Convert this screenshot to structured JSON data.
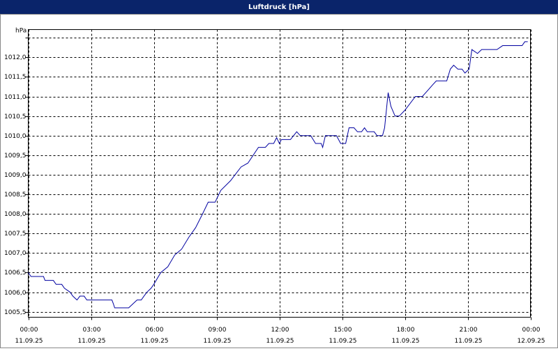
{
  "chart_data": {
    "type": "line",
    "title": "Luftdruck [hPa]",
    "y_label": "hPa",
    "xlim": [
      0,
      24
    ],
    "xticks": [
      {
        "value": 0,
        "label": [
          "00:00",
          "11.09.25"
        ]
      },
      {
        "value": 3,
        "label": [
          "03:00",
          "11.09.25"
        ]
      },
      {
        "value": 6,
        "label": [
          "06:00",
          "11.09.25"
        ]
      },
      {
        "value": 9,
        "label": [
          "09:00",
          "11.09.25"
        ]
      },
      {
        "value": 12,
        "label": [
          "12:00",
          "11.09.25"
        ]
      },
      {
        "value": 15,
        "label": [
          "15:00",
          "11.09.25"
        ]
      },
      {
        "value": 18,
        "label": [
          "18:00",
          "11.09.25"
        ]
      },
      {
        "value": 21,
        "label": [
          "21:00",
          "11.09.25"
        ]
      },
      {
        "value": 24,
        "label": [
          "00:00",
          "12.09.25"
        ]
      }
    ],
    "ylim": [
      1005.36,
      1012.71
    ],
    "yticks": [
      {
        "value": 1005.5,
        "label": "1005,5"
      },
      {
        "value": 1006,
        "label": "1006,0"
      },
      {
        "value": 1006.5,
        "label": "1006,5"
      },
      {
        "value": 1007,
        "label": "1007,0"
      },
      {
        "value": 1007.5,
        "label": "1007,5"
      },
      {
        "value": 1008,
        "label": "1008,0"
      },
      {
        "value": 1008.5,
        "label": "1008,5"
      },
      {
        "value": 1009,
        "label": "1009,0"
      },
      {
        "value": 1009.5,
        "label": "1009,5"
      },
      {
        "value": 1010,
        "label": "1010,0"
      },
      {
        "value": 1010.5,
        "label": "1010,5"
      },
      {
        "value": 1011,
        "label": "1011,0"
      },
      {
        "value": 1011.5,
        "label": "1011,5"
      },
      {
        "value": 1012,
        "label": "1012,0"
      },
      {
        "value": 1012.5,
        "label": null
      }
    ],
    "grid": true,
    "color": "#0000a0",
    "x": [
      0,
      0.13,
      0.73,
      0.8,
      1.2,
      1.33,
      1.6,
      1.73,
      2.0,
      2.13,
      2.33,
      2.47,
      2.67,
      2.8,
      4.0,
      4.07,
      4.13,
      4.8,
      5.0,
      5.2,
      5.4,
      5.53,
      5.67,
      5.87,
      6.0,
      6.33,
      6.67,
      7.0,
      7.33,
      7.67,
      8.0,
      8.33,
      8.6,
      8.93,
      9.2,
      9.67,
      10.17,
      10.5,
      11.0,
      11.33,
      11.5,
      11.73,
      11.87,
      12.0,
      12.1,
      12.53,
      12.83,
      13.0,
      13.5,
      13.73,
      14.0,
      14.07,
      14.2,
      14.73,
      14.93,
      15.17,
      15.33,
      15.57,
      15.73,
      15.93,
      16.07,
      16.2,
      16.53,
      16.67,
      16.93,
      17.03,
      17.2,
      17.33,
      17.53,
      17.73,
      18.0,
      18.5,
      18.83,
      19.0,
      19.33,
      19.5,
      20.0,
      20.17,
      20.33,
      20.53,
      20.73,
      20.87,
      21.07,
      21.2,
      21.47,
      21.67,
      22.4,
      22.67,
      23.6,
      23.73,
      23.87
    ],
    "values": [
      1006.5,
      1006.4,
      1006.4,
      1006.3,
      1006.3,
      1006.2,
      1006.2,
      1006.1,
      1006.0,
      1005.9,
      1005.8,
      1005.9,
      1005.9,
      1005.8,
      1005.8,
      1005.7,
      1005.6,
      1005.6,
      1005.7,
      1005.8,
      1005.8,
      1005.9,
      1006.0,
      1006.1,
      1006.2,
      1006.5,
      1006.65,
      1006.95,
      1007.1,
      1007.4,
      1007.65,
      1008.0,
      1008.3,
      1008.3,
      1008.6,
      1008.85,
      1009.2,
      1009.3,
      1009.7,
      1009.7,
      1009.8,
      1009.8,
      1009.95,
      1009.8,
      1009.9,
      1009.9,
      1010.1,
      1010.0,
      1010.0,
      1009.8,
      1009.8,
      1009.7,
      1010.0,
      1010.0,
      1009.8,
      1009.8,
      1010.2,
      1010.2,
      1010.1,
      1010.1,
      1010.2,
      1010.1,
      1010.1,
      1010.0,
      1010.0,
      1010.2,
      1011.1,
      1010.75,
      1010.5,
      1010.5,
      1010.65,
      1011.0,
      1011.0,
      1011.1,
      1011.3,
      1011.4,
      1011.4,
      1011.7,
      1011.8,
      1011.7,
      1011.7,
      1011.6,
      1011.7,
      1012.2,
      1012.1,
      1012.2,
      1012.2,
      1012.3,
      1012.3,
      1012.4,
      1012.4
    ]
  }
}
